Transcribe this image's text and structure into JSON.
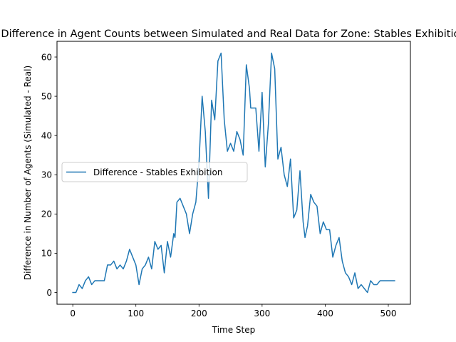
{
  "chart_data": {
    "type": "line",
    "title": "Difference in Agent Counts between Simulated and Real Data for Zone: Stables Exhibition",
    "xlabel": "Time Step",
    "ylabel": "Difference in Number of Agents (Simulated - Real)",
    "xlim": [
      -25,
      535
    ],
    "ylim": [
      -3,
      64
    ],
    "xticks": [
      0,
      100,
      200,
      300,
      400,
      500
    ],
    "yticks": [
      0,
      10,
      20,
      30,
      40,
      50,
      60
    ],
    "grid": false,
    "legend_position": "center-left",
    "series": [
      {
        "name": "Difference - Stables Exhibition",
        "color": "#1f77b4",
        "x": [
          0,
          5,
          10,
          15,
          20,
          25,
          30,
          35,
          40,
          45,
          50,
          55,
          60,
          65,
          70,
          75,
          80,
          85,
          90,
          95,
          100,
          105,
          110,
          115,
          120,
          125,
          130,
          135,
          140,
          145,
          150,
          155,
          160,
          162,
          165,
          170,
          175,
          180,
          185,
          190,
          195,
          200,
          205,
          210,
          215,
          220,
          225,
          230,
          235,
          240,
          245,
          250,
          255,
          260,
          265,
          270,
          275,
          280,
          282,
          285,
          290,
          295,
          300,
          305,
          310,
          315,
          320,
          325,
          330,
          335,
          340,
          345,
          350,
          355,
          360,
          365,
          368,
          372,
          377,
          382,
          387,
          392,
          397,
          402,
          407,
          412,
          417,
          422,
          427,
          432,
          437,
          442,
          447,
          452,
          457,
          462,
          467,
          472,
          477,
          482,
          487,
          492,
          497,
          502,
          507,
          510
        ],
        "y": [
          0,
          0,
          2,
          1,
          3,
          4,
          2,
          3,
          3,
          3,
          3,
          7,
          7,
          8,
          6,
          7,
          6,
          8,
          11,
          9,
          7,
          2,
          6,
          7,
          9,
          6,
          13,
          11,
          12,
          5,
          13,
          9,
          15,
          14,
          23,
          24,
          22,
          20,
          15,
          20,
          23,
          33,
          50,
          41,
          24,
          49,
          44,
          59,
          61,
          44,
          36,
          38,
          36,
          41,
          39,
          35,
          58,
          52,
          47,
          47,
          47,
          36,
          51,
          32,
          43,
          61,
          57,
          34,
          37,
          30,
          27,
          34,
          19,
          21,
          31,
          18,
          14,
          17,
          25,
          23,
          22,
          15,
          18,
          16,
          16,
          9,
          12,
          14,
          8,
          5,
          4,
          2,
          5,
          1,
          2,
          1,
          0,
          3,
          2,
          2,
          3,
          3,
          3,
          3,
          3,
          3
        ]
      }
    ]
  }
}
